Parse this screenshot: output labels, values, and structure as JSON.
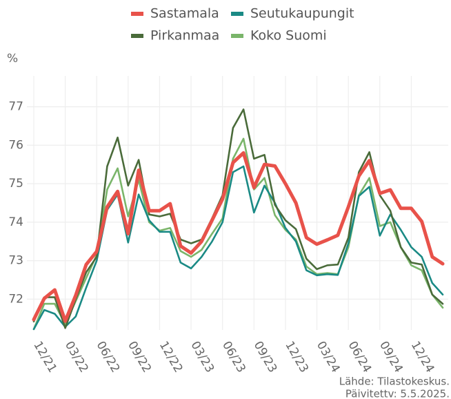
{
  "chart_data": {
    "type": "line",
    "y_label": "%",
    "notes": [
      "Lähde: Tilastokeskus.",
      "Päivitettv: 5.5.2025."
    ],
    "categories": [
      "12/21",
      null,
      null,
      "03/22",
      null,
      null,
      "06/22",
      null,
      null,
      "09/22",
      null,
      null,
      "12/22",
      null,
      null,
      "03/23",
      null,
      null,
      "06/23",
      null,
      null,
      "09/23",
      null,
      null,
      "12/23",
      null,
      null,
      "03/24",
      null,
      null,
      "06/24",
      null,
      null,
      "09/24",
      null,
      null,
      "12/24",
      null,
      null,
      null
    ],
    "series": [
      {
        "name": "Sastamala",
        "color": "#e8524a",
        "values": [
          71.47,
          72.02,
          72.24,
          71.43,
          72.1,
          72.9,
          73.24,
          74.4,
          74.8,
          73.7,
          75.35,
          74.3,
          74.3,
          74.48,
          73.38,
          73.2,
          73.5,
          74.05,
          74.6,
          75.55,
          75.8,
          74.9,
          75.5,
          75.46,
          75.0,
          74.5,
          73.6,
          73.43,
          73.54,
          73.66,
          74.4,
          75.2,
          75.6,
          74.75,
          74.84,
          74.36,
          74.36,
          74.02,
          73.1,
          72.92
        ]
      },
      {
        "name": "Pirkanmaa",
        "color": "#4a6b3a",
        "values": [
          71.42,
          72.05,
          72.05,
          71.25,
          72.0,
          72.7,
          73.1,
          75.45,
          76.2,
          74.95,
          75.62,
          74.2,
          74.15,
          74.22,
          73.55,
          73.45,
          73.55,
          74.1,
          74.7,
          76.45,
          76.93,
          75.65,
          75.75,
          74.45,
          74.05,
          73.82,
          73.05,
          72.78,
          72.88,
          72.9,
          73.6,
          75.3,
          75.82,
          74.7,
          74.3,
          73.35,
          72.95,
          72.9,
          72.12,
          71.88
        ]
      },
      {
        "name": "Seutukaupungit",
        "color": "#1a8a85",
        "values": [
          71.22,
          71.72,
          71.62,
          71.28,
          71.55,
          72.3,
          73.0,
          74.32,
          74.72,
          73.47,
          74.72,
          74.05,
          73.75,
          73.75,
          72.95,
          72.8,
          73.1,
          73.5,
          74.0,
          75.3,
          75.45,
          74.25,
          74.95,
          74.5,
          73.85,
          73.5,
          72.75,
          72.62,
          72.65,
          72.63,
          73.45,
          74.68,
          74.92,
          73.65,
          74.2,
          73.8,
          73.35,
          73.1,
          72.42,
          72.12
        ]
      },
      {
        "name": "Koko Suomi",
        "color": "#7ab56a",
        "values": [
          71.22,
          71.88,
          71.88,
          71.35,
          71.95,
          72.55,
          73.15,
          74.85,
          75.4,
          74.15,
          75.1,
          74.0,
          73.78,
          73.85,
          73.25,
          73.1,
          73.28,
          73.7,
          74.1,
          75.65,
          76.17,
          74.85,
          75.15,
          74.18,
          73.8,
          73.55,
          72.85,
          72.65,
          72.68,
          72.65,
          73.35,
          74.7,
          75.15,
          73.9,
          74.0,
          73.35,
          72.88,
          72.75,
          72.12,
          71.78
        ]
      }
    ],
    "ylim": [
      71.2,
      77.8
    ],
    "yticks": [
      72,
      73,
      74,
      75,
      76,
      77
    ],
    "grid": true
  }
}
